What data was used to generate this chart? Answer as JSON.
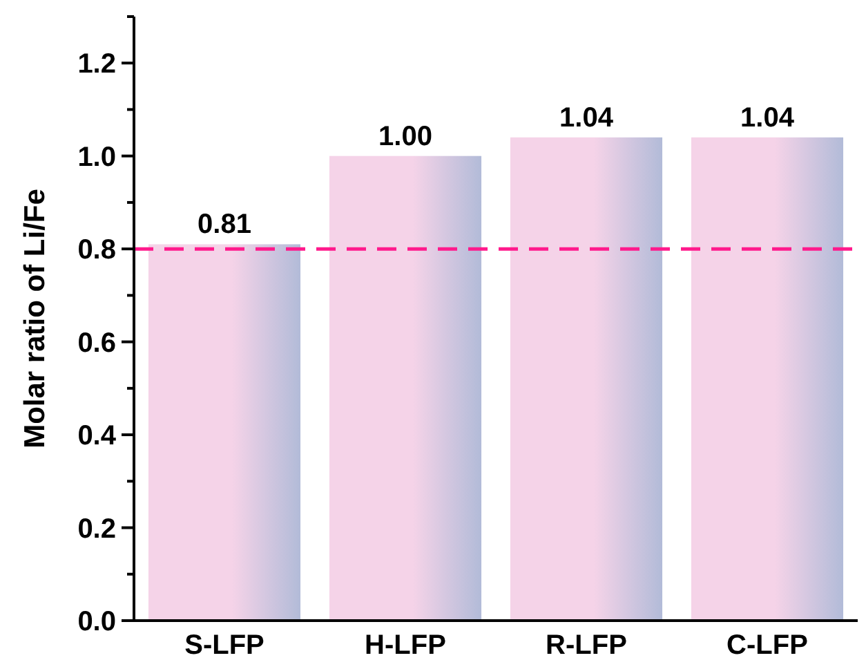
{
  "chart_data": {
    "type": "bar",
    "ylabel": "Molar ratio of Li/Fe",
    "categories": [
      "S-LFP",
      "H-LFP",
      "R-LFP",
      "C-LFP"
    ],
    "series": [
      {
        "color": "#f5d3e8",
        "values": [
          0.81,
          1.0,
          1.04,
          1.04
        ],
        "value_labels": [
          "0.81",
          "1.00",
          "1.04",
          "1.04"
        ]
      }
    ],
    "ylim": [
      0,
      1.3
    ],
    "yticks": [
      {
        "value": 0,
        "label": "0.0"
      },
      {
        "value": 0.1,
        "label": null
      },
      {
        "value": 0.2,
        "label": "0.2"
      },
      {
        "value": 0.3,
        "label": null
      },
      {
        "value": 0.4,
        "label": "0.4"
      },
      {
        "value": 0.5,
        "label": null
      },
      {
        "value": 0.6,
        "label": "0.6"
      },
      {
        "value": 0.7,
        "label": null
      },
      {
        "value": 0.8,
        "label": "0.8"
      },
      {
        "value": 0.9,
        "label": null
      },
      {
        "value": 1.0,
        "label": "1.0"
      },
      {
        "value": 1.1,
        "label": null
      },
      {
        "value": 1.2,
        "label": "1.2"
      },
      {
        "value": 1.3,
        "label": null
      }
    ],
    "ref_lines": [
      {
        "axis": "y",
        "value": 0.8,
        "color": "#ff1a8c",
        "line_style": "dashed"
      }
    ],
    "grid": false
  }
}
